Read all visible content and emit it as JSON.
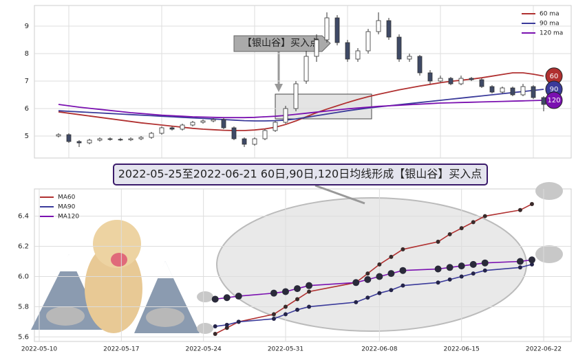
{
  "chart_data": [
    {
      "type": "candlestick",
      "open": [
        5.0,
        5.05,
        4.8,
        4.75,
        4.85,
        4.9,
        4.88,
        4.86,
        4.9,
        4.95,
        5.1,
        5.3,
        5.25,
        5.4,
        5.5,
        5.55,
        5.6,
        5.3,
        4.9,
        4.7,
        4.9,
        5.2,
        5.5,
        6.0,
        7.0,
        7.9,
        8.5,
        9.3,
        8.4,
        7.8,
        8.1,
        8.8,
        9.2,
        8.6,
        7.8,
        7.9,
        7.3,
        7.0,
        7.1,
        6.9,
        7.1,
        7.05,
        6.8,
        6.6,
        6.75,
        6.5,
        6.8,
        6.4
      ],
      "high": [
        5.1,
        5.1,
        4.85,
        4.9,
        4.95,
        4.95,
        4.93,
        4.95,
        5.0,
        5.15,
        5.35,
        5.35,
        5.45,
        5.55,
        5.6,
        5.65,
        5.65,
        5.35,
        4.95,
        4.95,
        5.25,
        5.55,
        6.1,
        7.0,
        8.1,
        8.7,
        9.5,
        9.4,
        8.5,
        8.2,
        8.9,
        9.5,
        9.3,
        8.7,
        8.0,
        7.95,
        7.4,
        7.2,
        7.15,
        7.2,
        7.15,
        7.1,
        6.85,
        6.8,
        6.8,
        6.9,
        6.85,
        6.45
      ],
      "low": [
        4.95,
        4.75,
        4.6,
        4.7,
        4.8,
        4.83,
        4.82,
        4.82,
        4.85,
        4.9,
        5.05,
        5.2,
        5.2,
        5.35,
        5.45,
        5.5,
        5.25,
        4.85,
        4.6,
        4.65,
        4.85,
        5.15,
        5.45,
        5.9,
        6.9,
        7.7,
        8.4,
        8.3,
        7.7,
        7.7,
        8.0,
        8.7,
        8.5,
        7.7,
        7.7,
        7.2,
        6.9,
        6.95,
        6.85,
        6.85,
        7.0,
        6.75,
        6.55,
        6.55,
        6.45,
        6.45,
        6.35,
        5.9
      ],
      "close": [
        5.05,
        4.8,
        4.75,
        4.85,
        4.9,
        4.88,
        4.86,
        4.9,
        4.95,
        5.1,
        5.3,
        5.25,
        5.4,
        5.5,
        5.55,
        5.6,
        5.3,
        4.9,
        4.7,
        4.9,
        5.2,
        5.5,
        6.0,
        6.9,
        7.9,
        8.5,
        9.3,
        8.4,
        7.8,
        8.1,
        8.8,
        9.2,
        8.6,
        7.8,
        7.9,
        7.3,
        7.0,
        7.1,
        6.9,
        7.1,
        7.05,
        6.8,
        6.6,
        6.75,
        6.5,
        6.8,
        6.4,
        6.15
      ],
      "up_color": "#ffffff",
      "down_color": "#3f4a66",
      "series": [
        {
          "name": "60 ma",
          "color": "#b03030",
          "values": [
            5.88,
            5.83,
            5.78,
            5.73,
            5.68,
            5.63,
            5.58,
            5.53,
            5.48,
            5.44,
            5.4,
            5.36,
            5.32,
            5.28,
            5.25,
            5.23,
            5.21,
            5.2,
            5.2,
            5.22,
            5.26,
            5.32,
            5.42,
            5.55,
            5.7,
            5.85,
            5.98,
            6.1,
            6.22,
            6.33,
            6.43,
            6.52,
            6.6,
            6.68,
            6.75,
            6.82,
            6.88,
            6.94,
            6.99,
            7.03,
            7.07,
            7.12,
            7.18,
            7.24,
            7.3,
            7.3,
            7.25,
            7.18
          ]
        },
        {
          "name": "90 ma",
          "color": "#3a3a9a",
          "values": [
            5.92,
            5.9,
            5.88,
            5.86,
            5.84,
            5.82,
            5.8,
            5.78,
            5.76,
            5.74,
            5.72,
            5.7,
            5.68,
            5.66,
            5.64,
            5.62,
            5.6,
            5.58,
            5.56,
            5.55,
            5.55,
            5.56,
            5.58,
            5.62,
            5.68,
            5.74,
            5.8,
            5.86,
            5.92,
            5.97,
            6.02,
            6.06,
            6.1,
            6.14,
            6.18,
            6.22,
            6.26,
            6.3,
            6.34,
            6.38,
            6.42,
            6.46,
            6.5,
            6.54,
            6.58,
            6.62,
            6.66,
            6.7
          ]
        },
        {
          "name": "120 ma",
          "color": "#7a10b0",
          "values": [
            6.15,
            6.1,
            6.05,
            6.01,
            5.97,
            5.93,
            5.89,
            5.85,
            5.82,
            5.79,
            5.76,
            5.74,
            5.72,
            5.7,
            5.69,
            5.68,
            5.67,
            5.67,
            5.67,
            5.68,
            5.7,
            5.72,
            5.75,
            5.79,
            5.83,
            5.87,
            5.91,
            5.95,
            5.99,
            6.02,
            6.05,
            6.08,
            6.1,
            6.12,
            6.14,
            6.16,
            6.18,
            6.2,
            6.21,
            6.22,
            6.23,
            6.24,
            6.25,
            6.26,
            6.27,
            6.28,
            6.29,
            6.3
          ]
        }
      ],
      "end_labels": [
        "60",
        "90",
        "120"
      ],
      "annotation": "【银山谷】买入点",
      "ylim": [
        4.2,
        9.75
      ],
      "yticks": [
        5,
        6,
        7,
        8,
        9
      ],
      "grid": true,
      "legend": "upper right"
    },
    {
      "type": "line",
      "x": [
        "2022-05-25",
        "2022-05-26",
        "2022-05-27",
        "2022-05-30",
        "2022-05-31",
        "2022-06-01",
        "2022-06-02",
        "2022-06-06",
        "2022-06-07",
        "2022-06-08",
        "2022-06-09",
        "2022-06-10",
        "2022-06-13",
        "2022-06-14",
        "2022-06-15",
        "2022-06-16",
        "2022-06-17",
        "2022-06-20",
        "2022-06-21"
      ],
      "series": [
        {
          "name": "MA60",
          "color": "#b03030",
          "marker_color": "#3a2a2a",
          "values": [
            5.62,
            5.66,
            5.7,
            5.75,
            5.8,
            5.85,
            5.9,
            5.96,
            6.02,
            6.08,
            6.13,
            6.18,
            6.23,
            6.28,
            6.32,
            6.36,
            6.4,
            6.44,
            6.48
          ]
        },
        {
          "name": "MA90",
          "color": "#3a3a9a",
          "marker_color": "#24244a",
          "values": [
            5.67,
            5.68,
            5.7,
            5.72,
            5.75,
            5.78,
            5.8,
            5.83,
            5.86,
            5.89,
            5.91,
            5.94,
            5.96,
            5.98,
            6.0,
            6.02,
            6.04,
            6.06,
            6.08
          ]
        },
        {
          "name": "MA120",
          "color": "#7a10b0",
          "marker_color": "#2a2a3a",
          "values": [
            5.85,
            5.86,
            5.87,
            5.89,
            5.9,
            5.92,
            5.94,
            5.96,
            5.98,
            6.0,
            6.02,
            6.04,
            6.05,
            6.06,
            6.07,
            6.08,
            6.09,
            6.1,
            6.11
          ]
        }
      ],
      "xlim": [
        "2022-05-10",
        "2022-06-22"
      ],
      "xticks": [
        "2022-05-10",
        "2022-05-17",
        "2022-05-24",
        "2022-05-31",
        "2022-06-08",
        "2022-06-15",
        "2022-06-22"
      ],
      "ylim": [
        5.57,
        6.58
      ],
      "yticks": [
        5.6,
        5.8,
        {
          "value": 6,
          "label": "6.0"
        },
        6.2,
        6.4
      ],
      "grid": true,
      "legend": "upper left"
    }
  ],
  "banner": "2022-05-25至2022-06-21 60日,90日,120日均线形成【银山谷】买入点"
}
